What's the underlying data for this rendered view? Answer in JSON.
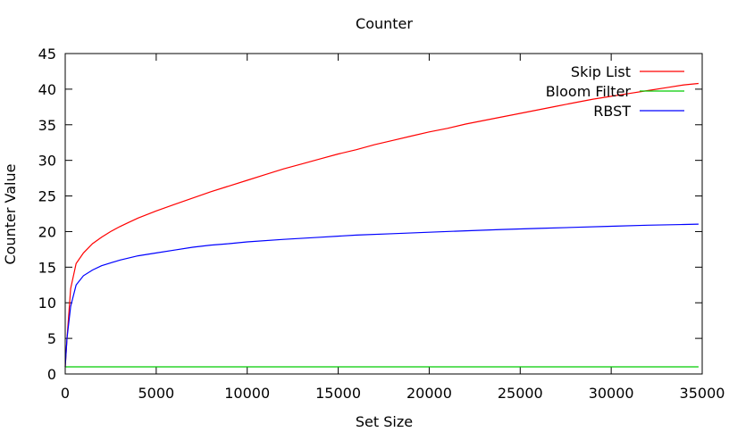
{
  "chart_data": {
    "type": "line",
    "title": "Counter",
    "xlabel": "Set Size",
    "ylabel": "Counter Value",
    "xlim": [
      0,
      35000
    ],
    "ylim": [
      0,
      45
    ],
    "xticks": [
      0,
      5000,
      10000,
      15000,
      20000,
      25000,
      30000,
      35000
    ],
    "yticks": [
      0,
      5,
      10,
      15,
      20,
      25,
      30,
      35,
      40,
      45
    ],
    "grid": false,
    "legend": "top-right",
    "series": [
      {
        "name": "Skip List",
        "color": "#ff0000",
        "points": [
          [
            0,
            1
          ],
          [
            100,
            5
          ],
          [
            300,
            12
          ],
          [
            600,
            15.5
          ],
          [
            1000,
            17
          ],
          [
            1500,
            18.3
          ],
          [
            2000,
            19.2
          ],
          [
            2500,
            20
          ],
          [
            3000,
            20.7
          ],
          [
            3500,
            21.3
          ],
          [
            4000,
            21.9
          ],
          [
            5000,
            22.9
          ],
          [
            6000,
            23.8
          ],
          [
            7000,
            24.7
          ],
          [
            8000,
            25.6
          ],
          [
            9000,
            26.4
          ],
          [
            10000,
            27.2
          ],
          [
            11000,
            28
          ],
          [
            12000,
            28.8
          ],
          [
            13000,
            29.5
          ],
          [
            14000,
            30.2
          ],
          [
            15000,
            30.9
          ],
          [
            16000,
            31.5
          ],
          [
            17000,
            32.2
          ],
          [
            18000,
            32.8
          ],
          [
            19000,
            33.4
          ],
          [
            20000,
            34
          ],
          [
            21000,
            34.5
          ],
          [
            22000,
            35.1
          ],
          [
            23000,
            35.6
          ],
          [
            24000,
            36.1
          ],
          [
            25000,
            36.6
          ],
          [
            26000,
            37.1
          ],
          [
            27000,
            37.6
          ],
          [
            28000,
            38.1
          ],
          [
            29000,
            38.6
          ],
          [
            30000,
            39
          ],
          [
            31000,
            39.4
          ],
          [
            32000,
            39.8
          ],
          [
            33000,
            40.2
          ],
          [
            34000,
            40.6
          ],
          [
            34800,
            40.8
          ]
        ]
      },
      {
        "name": "Bloom Filter",
        "color": "#00cc00",
        "points": [
          [
            0,
            1
          ],
          [
            34800,
            1
          ]
        ]
      },
      {
        "name": "RBST",
        "color": "#0000ff",
        "points": [
          [
            0,
            1
          ],
          [
            100,
            5
          ],
          [
            300,
            9.5
          ],
          [
            600,
            12.5
          ],
          [
            1000,
            13.8
          ],
          [
            1500,
            14.6
          ],
          [
            2000,
            15.2
          ],
          [
            3000,
            16
          ],
          [
            4000,
            16.6
          ],
          [
            5000,
            17
          ],
          [
            6000,
            17.4
          ],
          [
            7000,
            17.8
          ],
          [
            8000,
            18.1
          ],
          [
            9000,
            18.3
          ],
          [
            10000,
            18.55
          ],
          [
            12000,
            18.9
          ],
          [
            14000,
            19.2
          ],
          [
            16000,
            19.5
          ],
          [
            18000,
            19.7
          ],
          [
            20000,
            19.9
          ],
          [
            22000,
            20.1
          ],
          [
            24000,
            20.3
          ],
          [
            26000,
            20.45
          ],
          [
            28000,
            20.6
          ],
          [
            30000,
            20.75
          ],
          [
            32000,
            20.9
          ],
          [
            34000,
            21
          ],
          [
            34800,
            21.05
          ]
        ]
      }
    ]
  }
}
